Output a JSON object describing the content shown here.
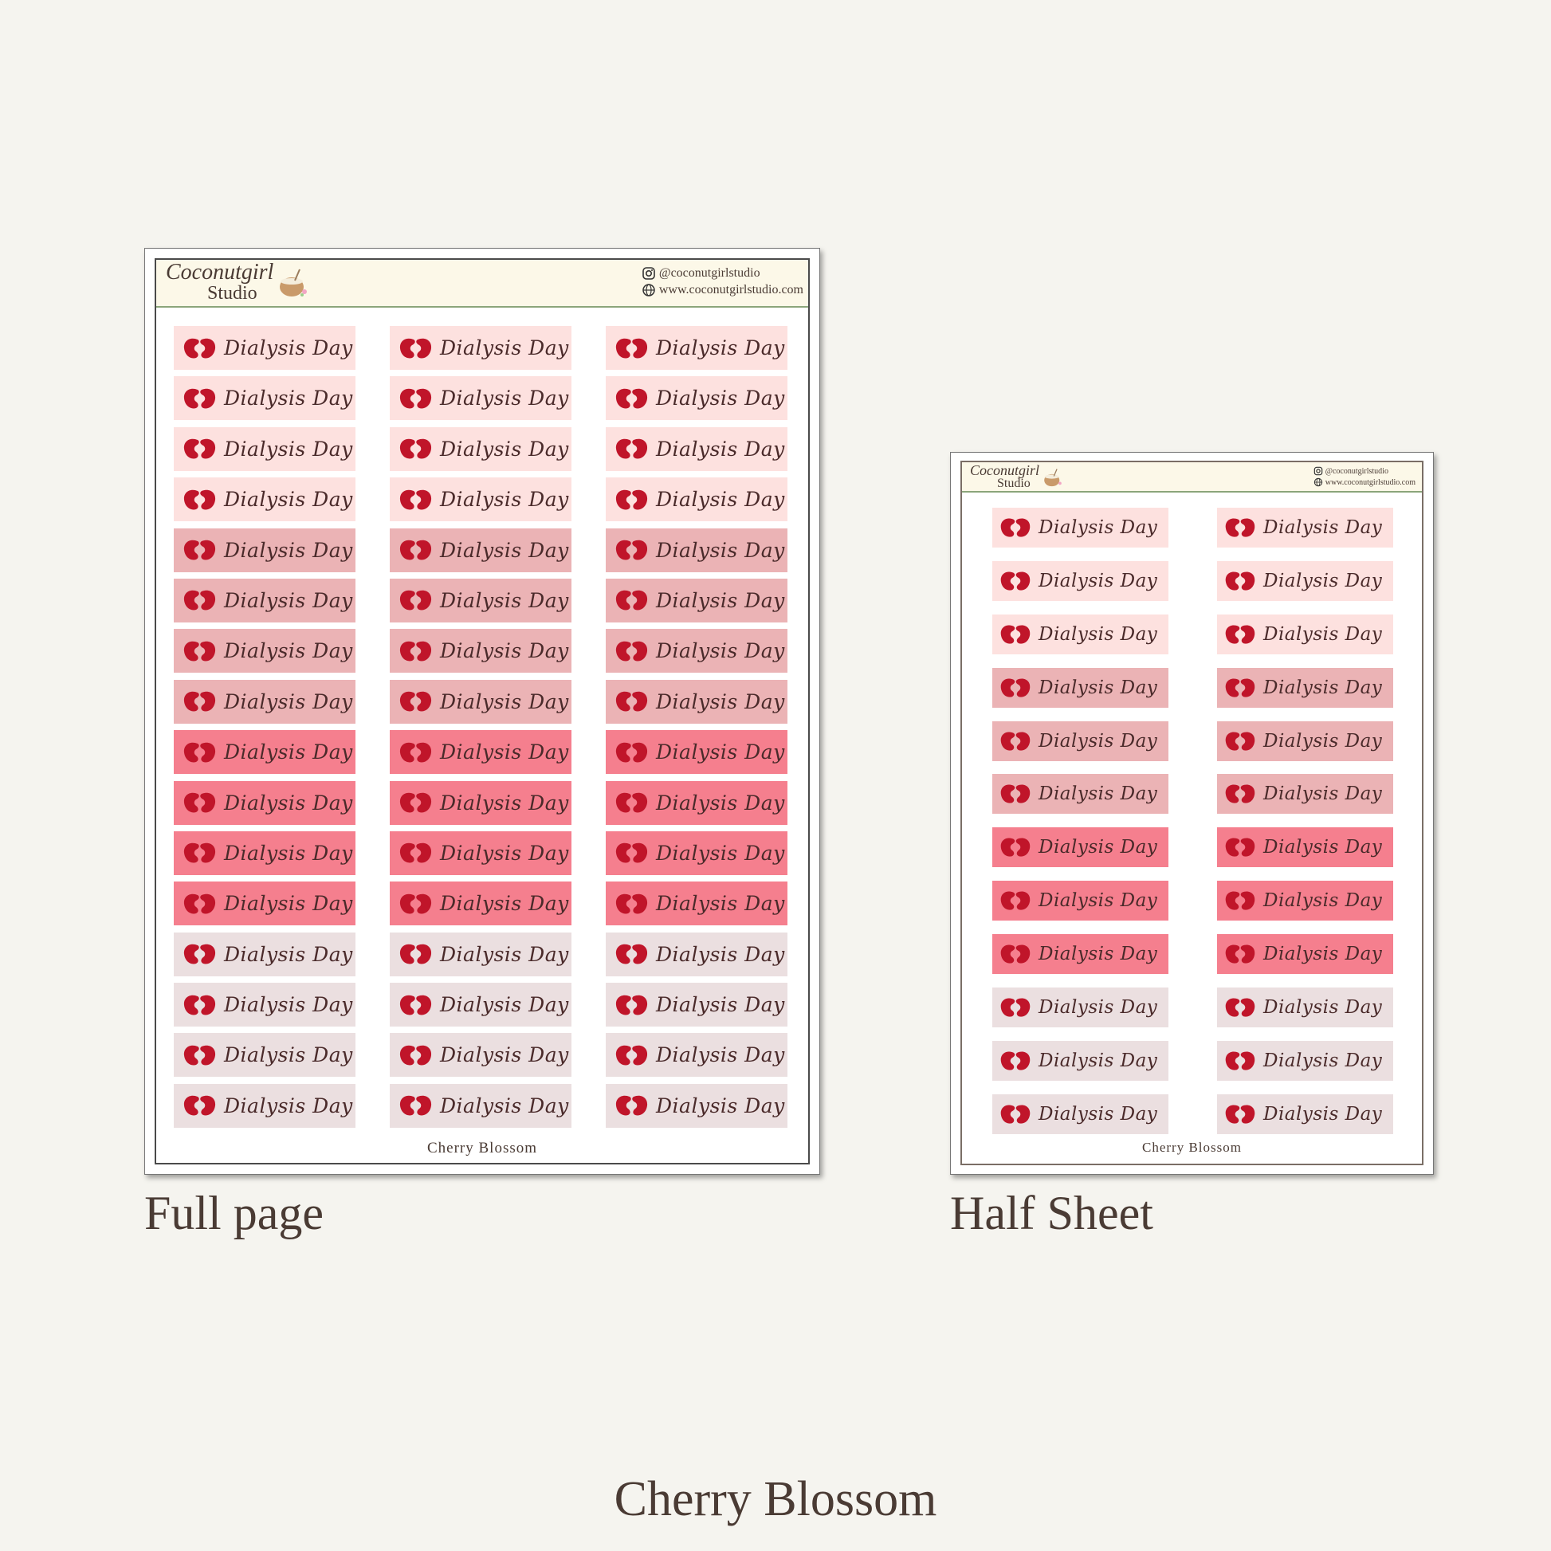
{
  "brand": {
    "logo_line1": "Coconutgirl",
    "logo_line2": "Studio",
    "instagram": "@coconutgirlstudio",
    "website": "www.coconutgirlstudio.com"
  },
  "sticker_label": "Dialysis Day",
  "colors": {
    "page_bg": "#f5f4ef",
    "light_pink": "#fde1df",
    "medium_pink": "#ebb3b5",
    "bright_pink": "#f57f8e",
    "mauve": "#ebdfe0",
    "kidney_red": "#c0152a",
    "header_bg": "#fcf8e8"
  },
  "full_page": {
    "caption": "Full page",
    "footer": "Cherry Blossom",
    "rows": [
      "light_pink",
      "light_pink",
      "light_pink",
      "light_pink",
      "medium_pink",
      "medium_pink",
      "medium_pink",
      "medium_pink",
      "bright_pink",
      "bright_pink",
      "bright_pink",
      "bright_pink",
      "mauve",
      "mauve",
      "mauve",
      "mauve"
    ],
    "columns": 3
  },
  "half_sheet": {
    "caption": "Half Sheet",
    "footer": "Cherry Blossom",
    "rows": [
      "light_pink",
      "light_pink",
      "light_pink",
      "medium_pink",
      "medium_pink",
      "medium_pink",
      "bright_pink",
      "bright_pink",
      "bright_pink",
      "mauve",
      "mauve",
      "mauve"
    ],
    "columns": 2
  },
  "colorway_title": "Cherry Blossom"
}
